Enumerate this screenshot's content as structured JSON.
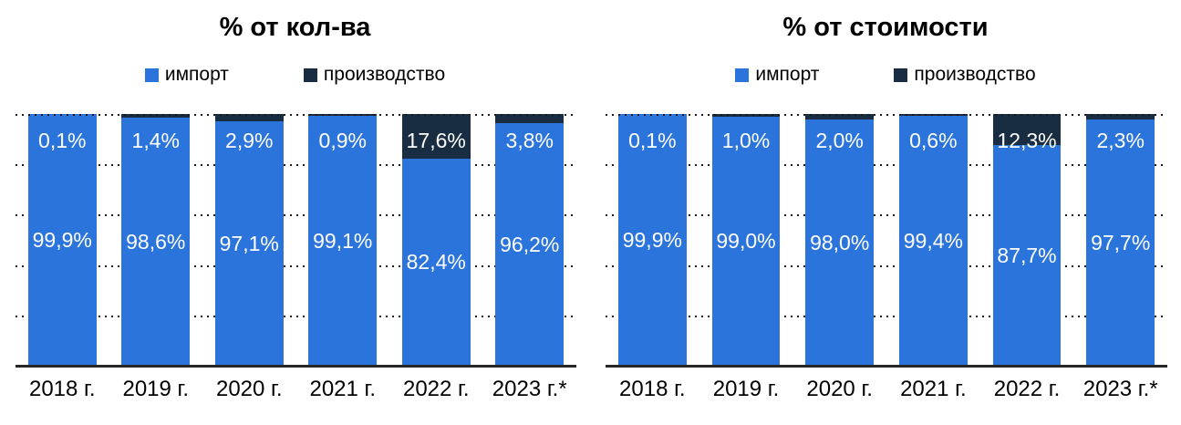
{
  "page": {
    "background": "#FFFFFF"
  },
  "colors": {
    "import": "#2B74DC",
    "production": "#182C42",
    "axis_line": "#262626",
    "gridline_dots": "#1A1A1A",
    "bar_label_text": "#FFFFFF",
    "text": "#000000"
  },
  "chart_data": [
    {
      "type": "bar",
      "stacked": true,
      "title": "% от кол-ва",
      "categories": [
        "2018 г.",
        "2019 г.",
        "2020 г.",
        "2021 г.",
        "2022 г.",
        "2023 г.*"
      ],
      "series": [
        {
          "name": "импорт",
          "color": "#2B74DC",
          "values": [
            99.9,
            98.6,
            97.1,
            99.1,
            82.4,
            96.2
          ],
          "labels": [
            "99,9%",
            "98,6%",
            "97,1%",
            "99,1%",
            "82,4%",
            "96,2%"
          ]
        },
        {
          "name": "производство",
          "color": "#182C42",
          "values": [
            0.1,
            1.4,
            2.9,
            0.9,
            17.6,
            3.8
          ],
          "labels": [
            "0,1%",
            "1,4%",
            "2,9%",
            "0,9%",
            "17,6%",
            "3,8%"
          ]
        }
      ],
      "ylim": [
        0,
        100
      ],
      "grid": "dotted horizontal lines every 20%",
      "legend_position": "top"
    },
    {
      "type": "bar",
      "stacked": true,
      "title": "% от стоимости",
      "categories": [
        "2018 г.",
        "2019 г.",
        "2020 г.",
        "2021 г.",
        "2022 г.",
        "2023 г.*"
      ],
      "series": [
        {
          "name": "импорт",
          "color": "#2B74DC",
          "values": [
            99.9,
            99.0,
            98.0,
            99.4,
            87.7,
            97.7
          ],
          "labels": [
            "99,9%",
            "99,0%",
            "98,0%",
            "99,4%",
            "87,7%",
            "97,7%"
          ]
        },
        {
          "name": "производство",
          "color": "#182C42",
          "values": [
            0.1,
            1.0,
            2.0,
            0.6,
            12.3,
            2.3
          ],
          "labels": [
            "0,1%",
            "1,0%",
            "2,0%",
            "0,6%",
            "12,3%",
            "2,3%"
          ]
        }
      ],
      "ylim": [
        0,
        100
      ],
      "grid": "dotted horizontal lines every 20%",
      "legend_position": "top"
    }
  ]
}
